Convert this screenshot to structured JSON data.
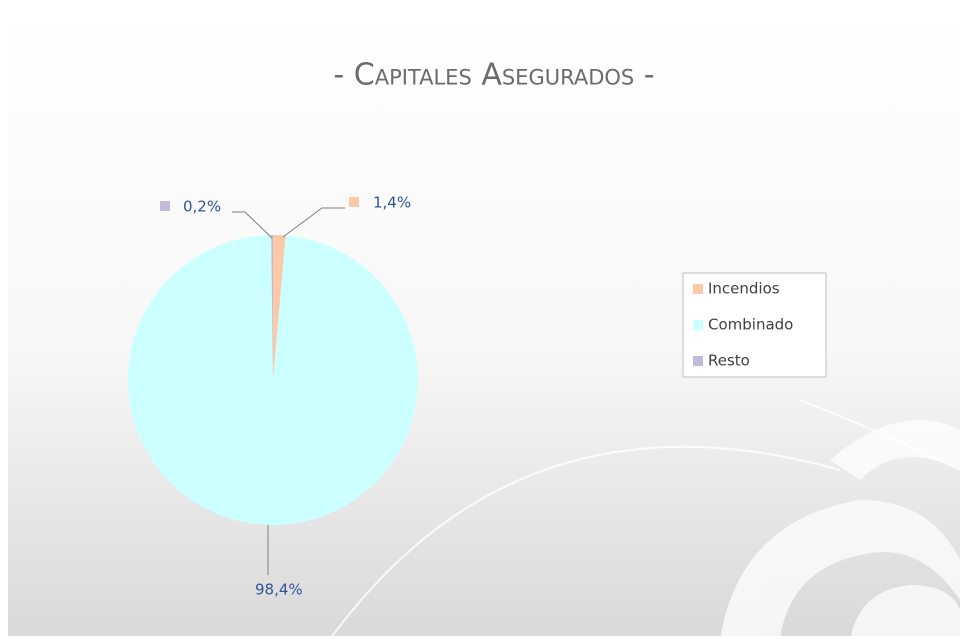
{
  "chart_data": {
    "type": "pie",
    "title": "- Capitales Asegurados -",
    "categories": [
      "Incendios",
      "Combinado",
      "Resto"
    ],
    "values": [
      1.4,
      98.4,
      0.2
    ],
    "value_labels": [
      "1,4%",
      "98,4%",
      "0,2%"
    ],
    "colors": [
      "#fbc9a5",
      "#ccffff",
      "#c3bad9"
    ],
    "legend": "right"
  }
}
